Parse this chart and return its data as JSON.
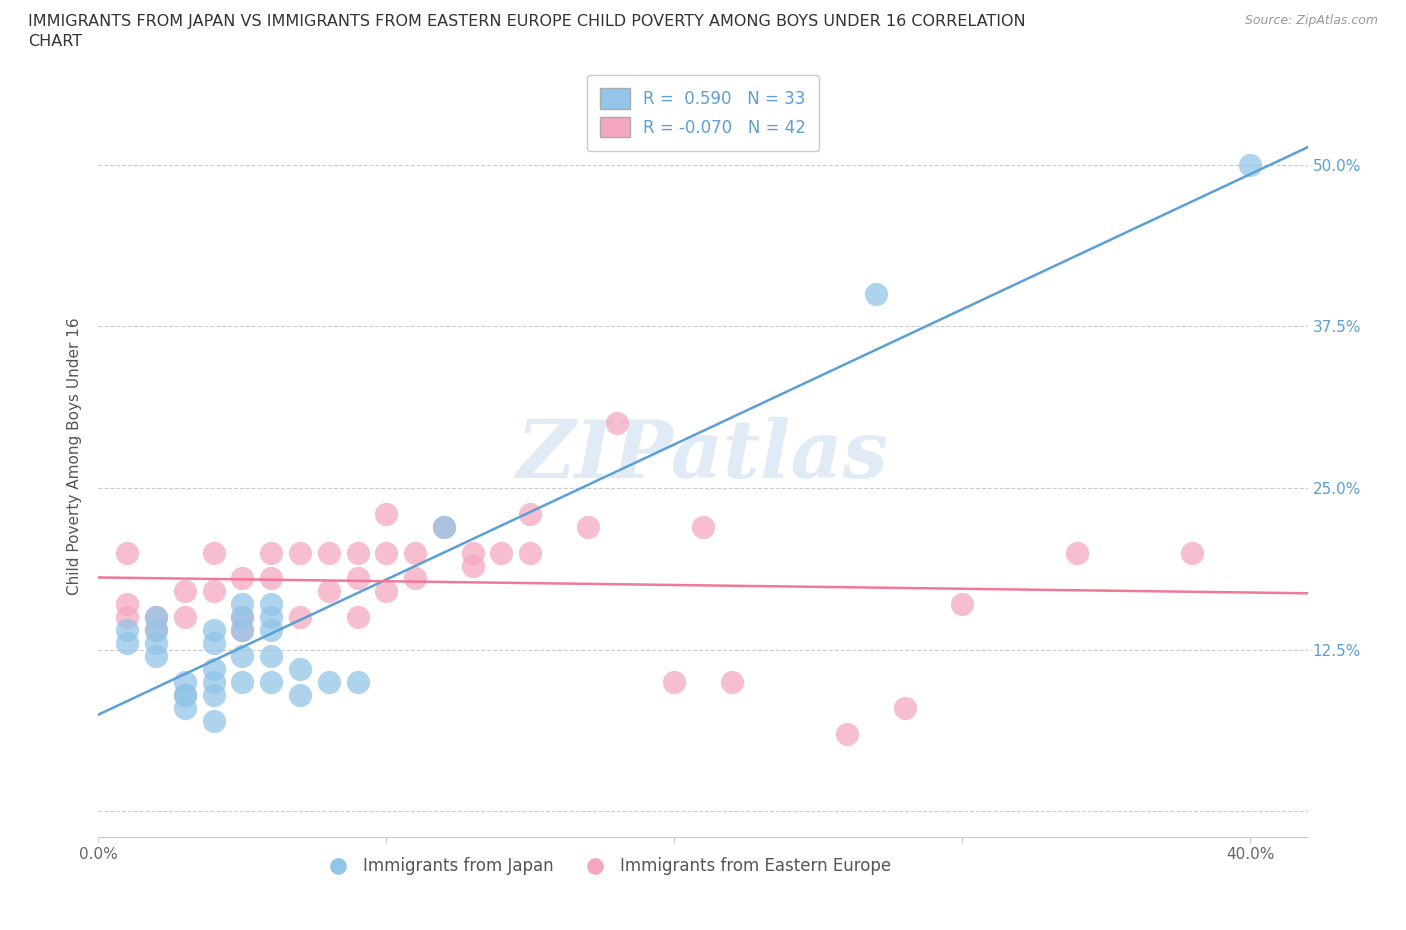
{
  "title_line1": "IMMIGRANTS FROM JAPAN VS IMMIGRANTS FROM EASTERN EUROPE CHILD POVERTY AMONG BOYS UNDER 16 CORRELATION",
  "title_line2": "CHART",
  "source": "Source: ZipAtlas.com",
  "ylabel": "Child Poverty Among Boys Under 16",
  "xlim": [
    0.0,
    0.42
  ],
  "ylim": [
    -0.02,
    0.57
  ],
  "x_ticks": [
    0.0,
    0.1,
    0.2,
    0.3,
    0.4
  ],
  "x_tick_labels": [
    "0.0%",
    "",
    "",
    "",
    "40.0%"
  ],
  "y_ticks": [
    0.0,
    0.125,
    0.25,
    0.375,
    0.5
  ],
  "y_tick_labels_right": [
    "",
    "12.5%",
    "25.0%",
    "37.5%",
    "50.0%"
  ],
  "R_japan": 0.59,
  "N_japan": 33,
  "R_eastern": -0.07,
  "N_eastern": 42,
  "color_japan": "#92C5E8",
  "color_eastern": "#F4A8C0",
  "line_japan": "#5B9FD4",
  "line_eastern": "#F07898",
  "japan_x": [
    0.01,
    0.01,
    0.02,
    0.02,
    0.02,
    0.02,
    0.03,
    0.03,
    0.03,
    0.03,
    0.04,
    0.04,
    0.04,
    0.04,
    0.04,
    0.04,
    0.05,
    0.05,
    0.05,
    0.05,
    0.05,
    0.06,
    0.06,
    0.06,
    0.06,
    0.06,
    0.07,
    0.07,
    0.08,
    0.09,
    0.12,
    0.27,
    0.4
  ],
  "japan_y": [
    0.14,
    0.13,
    0.15,
    0.14,
    0.13,
    0.12,
    0.1,
    0.09,
    0.09,
    0.08,
    0.14,
    0.13,
    0.11,
    0.1,
    0.09,
    0.07,
    0.16,
    0.15,
    0.14,
    0.12,
    0.1,
    0.16,
    0.15,
    0.14,
    0.12,
    0.1,
    0.11,
    0.09,
    0.1,
    0.1,
    0.22,
    0.4,
    0.5
  ],
  "eastern_x": [
    0.01,
    0.01,
    0.01,
    0.02,
    0.02,
    0.03,
    0.03,
    0.04,
    0.04,
    0.05,
    0.05,
    0.05,
    0.06,
    0.06,
    0.07,
    0.07,
    0.08,
    0.08,
    0.09,
    0.09,
    0.09,
    0.1,
    0.1,
    0.1,
    0.11,
    0.11,
    0.12,
    0.13,
    0.13,
    0.14,
    0.15,
    0.15,
    0.17,
    0.18,
    0.2,
    0.21,
    0.22,
    0.26,
    0.28,
    0.3,
    0.34,
    0.38
  ],
  "eastern_y": [
    0.16,
    0.15,
    0.2,
    0.15,
    0.14,
    0.17,
    0.15,
    0.2,
    0.17,
    0.18,
    0.15,
    0.14,
    0.2,
    0.18,
    0.2,
    0.15,
    0.2,
    0.17,
    0.2,
    0.18,
    0.15,
    0.23,
    0.2,
    0.17,
    0.2,
    0.18,
    0.22,
    0.2,
    0.19,
    0.2,
    0.23,
    0.2,
    0.22,
    0.3,
    0.1,
    0.22,
    0.1,
    0.06,
    0.08,
    0.16,
    0.2,
    0.2
  ]
}
